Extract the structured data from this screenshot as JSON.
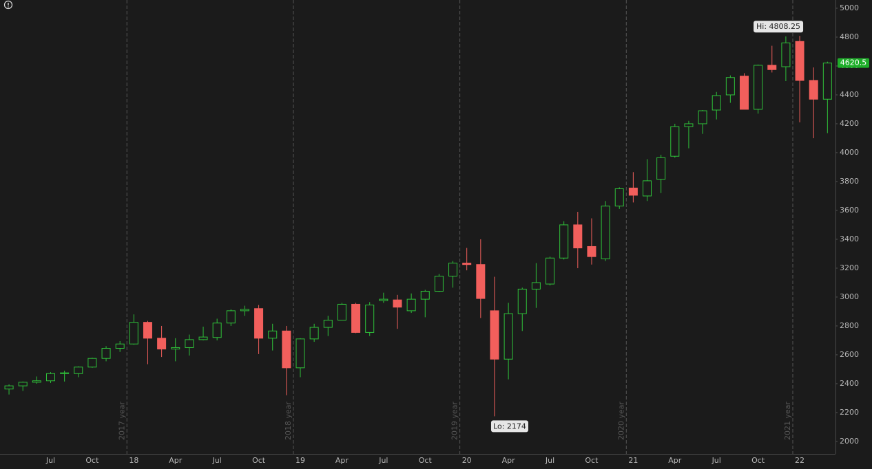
{
  "chart_data": {
    "type": "candlestick",
    "categories": [
      null,
      null,
      null,
      "Jul",
      null,
      null,
      "Oct",
      null,
      null,
      "18",
      null,
      null,
      "Apr",
      null,
      null,
      "Jul",
      null,
      null,
      "Oct",
      null,
      null,
      "19",
      null,
      null,
      "Apr",
      null,
      null,
      "Jul",
      null,
      null,
      "Oct",
      null,
      null,
      "20",
      null,
      null,
      "Apr",
      null,
      null,
      "Jul",
      null,
      null,
      "Oct",
      null,
      null,
      "21",
      null,
      null,
      "Apr",
      null,
      null,
      "Jul",
      null,
      null,
      "Oct",
      null,
      null,
      "22",
      null,
      null
    ],
    "open": [
      2363,
      2385,
      2410,
      2420,
      2470,
      2470,
      2515,
      2575,
      2645,
      2675,
      2825,
      2715,
      2640,
      2650,
      2705,
      2720,
      2820,
      2905,
      2920,
      2715,
      2765,
      2510,
      2710,
      2790,
      2840,
      2950,
      2755,
      2975,
      2980,
      2905,
      2985,
      3040,
      3145,
      3235,
      3225,
      2905,
      2570,
      2885,
      3055,
      3090,
      3270,
      3500,
      3350,
      3265,
      3630,
      3755,
      3700,
      3815,
      3975,
      4180,
      4200,
      4295,
      4400,
      4530,
      4300,
      4605,
      4595,
      4770,
      4500,
      4370
    ],
    "high": [
      2395,
      2415,
      2450,
      2480,
      2490,
      2520,
      2580,
      2660,
      2695,
      2880,
      2835,
      2800,
      2715,
      2740,
      2795,
      2850,
      2915,
      2940,
      2945,
      2815,
      2800,
      2715,
      2815,
      2870,
      2960,
      2960,
      2965,
      3030,
      3015,
      3025,
      3050,
      3160,
      3250,
      3340,
      3400,
      3140,
      2960,
      3065,
      3235,
      3280,
      3525,
      3590,
      3545,
      3665,
      3760,
      3865,
      3955,
      3985,
      4200,
      4220,
      4295,
      4420,
      4535,
      4550,
      4610,
      4740,
      4805,
      4808.25,
      4590,
      4630
    ],
    "low": [
      2325,
      2350,
      2400,
      2405,
      2415,
      2445,
      2510,
      2555,
      2620,
      2670,
      2535,
      2585,
      2555,
      2595,
      2700,
      2700,
      2800,
      2870,
      2605,
      2630,
      2320,
      2445,
      2690,
      2730,
      2840,
      2750,
      2730,
      2960,
      2780,
      2890,
      2860,
      3035,
      3065,
      3185,
      2855,
      2174,
      2430,
      2765,
      2925,
      3080,
      3260,
      3200,
      3225,
      3250,
      3610,
      3655,
      3665,
      3720,
      3965,
      4030,
      4130,
      4230,
      4345,
      4300,
      4270,
      4555,
      4495,
      4210,
      4100,
      4135
    ],
    "close": [
      2385,
      2410,
      2420,
      2470,
      2475,
      2515,
      2575,
      2645,
      2675,
      2825,
      2715,
      2640,
      2650,
      2705,
      2723,
      2820,
      2905,
      2915,
      2715,
      2765,
      2510,
      2710,
      2790,
      2840,
      2950,
      2755,
      2945,
      2985,
      2930,
      2985,
      3040,
      3145,
      3235,
      3225,
      2990,
      2570,
      2885,
      3055,
      3100,
      3270,
      3500,
      3340,
      3280,
      3630,
      3750,
      3705,
      3805,
      3965,
      4180,
      4200,
      4290,
      4395,
      4520,
      4300,
      4605,
      4575,
      4760,
      4500,
      4370,
      4620.5
    ],
    "up_color": "#2fc23a",
    "down_color": "#f25f5c",
    "last_color": "#1fae2a",
    "year_labels": [
      "2017 year",
      "2018 year",
      "2019 year",
      "2020 year",
      "2021 year"
    ],
    "high_label": "Hi: 4808.25",
    "low_label": "Lo: 2174",
    "ylim": [
      1914,
      5057
    ],
    "yticks": [
      2000,
      2200,
      2400,
      2600,
      2800,
      3000,
      3200,
      3400,
      3600,
      3800,
      4000,
      4200,
      4400,
      4600,
      4800,
      5000
    ]
  }
}
